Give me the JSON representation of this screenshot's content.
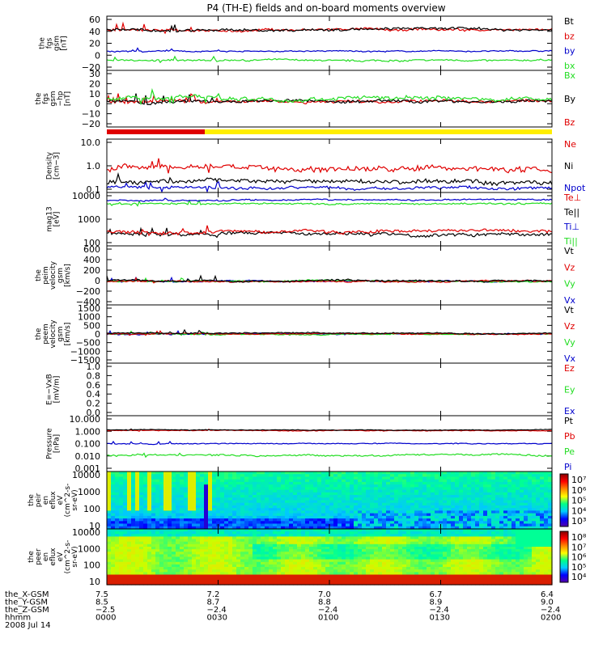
{
  "title": "P4 (TH-E) fields and on-board moments overview",
  "colors": {
    "black": "#000000",
    "red": "#e00000",
    "green": "#22dd22",
    "blue": "#0000cc",
    "yellow": "#ffee00"
  },
  "chart_data": [
    {
      "type": "line",
      "panel": "fgs_gsm",
      "ylabel": [
        "the",
        "fgs",
        "gsm",
        "[nT]"
      ],
      "yticks": [
        "60",
        "40",
        "20",
        "0",
        "−20"
      ],
      "ylim": [
        -20,
        65
      ],
      "series": [
        {
          "name": "Bt",
          "color": "black",
          "baseline": 44,
          "amplitude": 4
        },
        {
          "name": "bz",
          "color": "red",
          "baseline": 43,
          "amplitude": 4
        },
        {
          "name": "by",
          "color": "blue",
          "baseline": 10,
          "amplitude": 2
        },
        {
          "name": "bx",
          "color": "green",
          "baseline": -4,
          "amplitude": 3
        }
      ]
    },
    {
      "type": "line",
      "panel": "fgs_gsm_hp",
      "ylabel": [
        "the",
        "fgs",
        "gsm",
        "−hp",
        "[nT]"
      ],
      "yticks": [
        "30",
        "20",
        "10",
        "0",
        "−10",
        "−20"
      ],
      "ylim": [
        -25,
        30
      ],
      "series": [
        {
          "name": "Bx",
          "color": "green",
          "baseline": 2,
          "amplitude": 4
        },
        {
          "name": "By",
          "color": "black",
          "baseline": 0,
          "amplitude": 3
        },
        {
          "name": "Bz",
          "color": "red",
          "baseline": 0,
          "amplitude": 3
        }
      ]
    },
    {
      "type": "line",
      "panel": "density",
      "ylabel": [
        "Density",
        "[cm−3]"
      ],
      "yticks": [
        "10.0",
        "1.0",
        "0.1"
      ],
      "ylim": [
        0.1,
        10
      ],
      "scale": "log",
      "series": [
        {
          "name": "Ne",
          "color": "red",
          "baseline": 0.8,
          "amplitude": 0.4
        },
        {
          "name": "Ni",
          "color": "black",
          "baseline": 0.25,
          "amplitude": 0.1
        },
        {
          "name": "Npot",
          "color": "blue",
          "baseline": 0.15,
          "amplitude": 0.04
        }
      ]
    },
    {
      "type": "line",
      "panel": "temperature",
      "ylabel": [
        "mag13",
        "[eV]"
      ],
      "yticks": [
        "10000",
        "1000",
        "100"
      ],
      "ylim": [
        20,
        10000
      ],
      "scale": "log",
      "series": [
        {
          "name": "Te⊥",
          "color": "red",
          "baseline": 110,
          "amplitude": 40
        },
        {
          "name": "Te||",
          "color": "black",
          "baseline": 80,
          "amplitude": 30
        },
        {
          "name": "Ti⊥",
          "color": "blue",
          "baseline": 4200,
          "amplitude": 700
        },
        {
          "name": "Ti||",
          "color": "green",
          "baseline": 2700,
          "amplitude": 500
        }
      ]
    },
    {
      "type": "line",
      "panel": "peim_velocity",
      "ylabel": [
        "the",
        "peim",
        "velocity",
        "gsm",
        "[km/s]"
      ],
      "yticks": [
        "600",
        "400",
        "200",
        "0",
        "−200",
        "−400"
      ],
      "ylim": [
        -400,
        600
      ],
      "series": [
        {
          "name": "Vt",
          "color": "black",
          "baseline": 20,
          "amplitude": 30
        },
        {
          "name": "Vz",
          "color": "red",
          "baseline": 0,
          "amplitude": 25
        },
        {
          "name": "Vy",
          "color": "green",
          "baseline": 0,
          "amplitude": 25
        },
        {
          "name": "Vx",
          "color": "blue",
          "baseline": 0,
          "amplitude": 25
        }
      ]
    },
    {
      "type": "line",
      "panel": "peem_velocity",
      "ylabel": [
        "the",
        "peem",
        "velocity",
        "gsm",
        "[km/s]"
      ],
      "yticks": [
        "1500",
        "1000",
        "500",
        "0",
        "−500",
        "−1000",
        "−1500"
      ],
      "ylim": [
        -1500,
        1500
      ],
      "series": [
        {
          "name": "Vt",
          "color": "black",
          "baseline": 50,
          "amplitude": 60
        },
        {
          "name": "Vz",
          "color": "red",
          "baseline": 0,
          "amplitude": 60
        },
        {
          "name": "Vy",
          "color": "green",
          "baseline": 0,
          "amplitude": 60
        },
        {
          "name": "Vx",
          "color": "blue",
          "baseline": 0,
          "amplitude": 60
        }
      ]
    },
    {
      "type": "line",
      "panel": "e_vxb",
      "ylabel": [
        "E=−VxB",
        "[mV/m]"
      ],
      "yticks": [
        "1.0",
        "0.8",
        "0.6",
        "0.4",
        "0.2",
        "0.0"
      ],
      "ylim": [
        0,
        1
      ],
      "series": [
        {
          "name": "Ez",
          "color": "red"
        },
        {
          "name": "Ey",
          "color": "green"
        },
        {
          "name": "Ex",
          "color": "blue"
        }
      ]
    },
    {
      "type": "line",
      "panel": "pressure",
      "ylabel": [
        "Pressure",
        "[nPa]"
      ],
      "yticks": [
        "10.000",
        "1.000",
        "0.100",
        "0.010",
        "0.001"
      ],
      "ylim": [
        0.001,
        10
      ],
      "scale": "log",
      "series": [
        {
          "name": "Pt",
          "color": "black",
          "baseline": 0.95,
          "amplitude": 0.1
        },
        {
          "name": "Pb",
          "color": "red",
          "baseline": 0.85,
          "amplitude": 0.1
        },
        {
          "name": "Pe",
          "color": "green",
          "baseline": 0.015,
          "amplitude": 0.004
        },
        {
          "name": "Pi",
          "color": "blue",
          "baseline": 0.1,
          "amplitude": 0.015
        }
      ]
    },
    {
      "type": "heatmap",
      "panel": "peir_spectrogram",
      "ylabel": [
        "the",
        "peir",
        "en",
        "eflux",
        "eV",
        "(cm^2-s-",
        "sr-eV)"
      ],
      "yticks": [
        "10000",
        "1000",
        "100",
        "10"
      ],
      "ylim": [
        8,
        20000
      ],
      "scale": "log",
      "colorbar_ticks": [
        "10⁷",
        "10⁶",
        "10⁵",
        "10⁴",
        "10³"
      ]
    },
    {
      "type": "heatmap",
      "panel": "peer_spectrogram",
      "ylabel": [
        "the",
        "peer",
        "en",
        "eflux",
        "eV",
        "(cm^2-s-",
        "sr-eV)"
      ],
      "yticks": [
        "10000",
        "1000",
        "100",
        "10"
      ],
      "ylim": [
        8,
        20000
      ],
      "scale": "log",
      "colorbar_ticks": [
        "10⁸",
        "10⁷",
        "10⁶",
        "10⁵",
        "10⁴"
      ]
    }
  ],
  "mode_bar": {
    "segments": [
      {
        "color": "red",
        "end_fraction": 0.22
      },
      {
        "color": "yellow",
        "end_fraction": 1.0
      }
    ]
  },
  "orbit_table": {
    "row_labels": [
      "the_X-GSM",
      "the_Y-GSM",
      "the_Z-GSM",
      "hhmm",
      "2008 Jul 14"
    ],
    "columns": [
      {
        "x": "7.5",
        "y": "8.5",
        "z": "−2.5",
        "time": "0000"
      },
      {
        "x": "7.2",
        "y": "8.7",
        "z": "−2.4",
        "time": "0030"
      },
      {
        "x": "7.0",
        "y": "8.8",
        "z": "−2.4",
        "time": "0100"
      },
      {
        "x": "6.7",
        "y": "8.9",
        "z": "−2.4",
        "time": "0130"
      },
      {
        "x": "6.4",
        "y": "9.0",
        "z": "−2.4",
        "time": "0200"
      }
    ]
  }
}
